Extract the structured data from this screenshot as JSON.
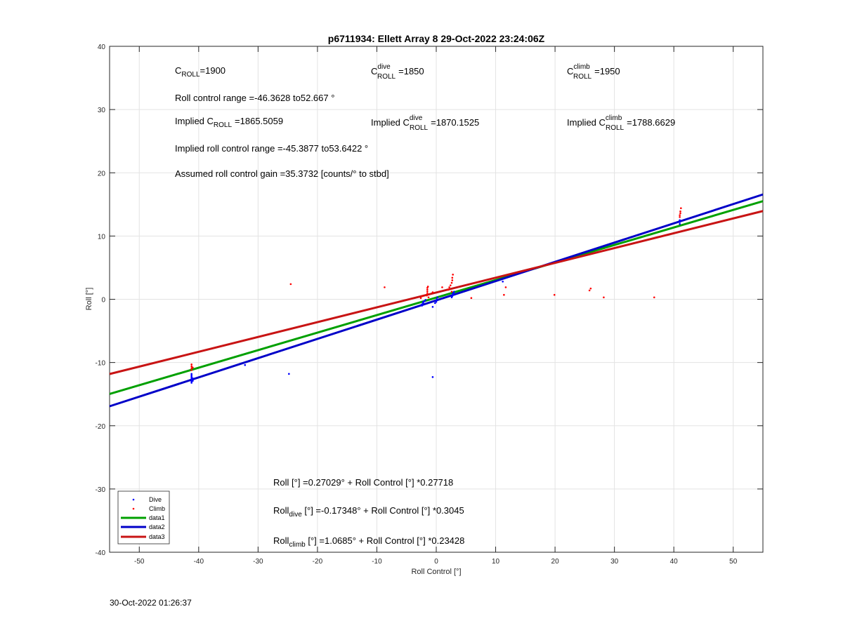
{
  "chart_data": {
    "type": "scatter",
    "title": "p6711934: Ellett Array 8 29-Oct-2022 23:24:06Z",
    "xlabel": "Roll Control [°]",
    "ylabel": "Roll [°]",
    "xlim": [
      -55,
      55
    ],
    "ylim": [
      -40,
      40
    ],
    "xticks": [
      -50,
      -40,
      -30,
      -20,
      -10,
      0,
      10,
      20,
      30,
      40,
      50
    ],
    "yticks": [
      -40,
      -30,
      -20,
      -10,
      0,
      10,
      20,
      30,
      40
    ],
    "grid": true,
    "legend_position": "bottom-left",
    "series": [
      {
        "name": "Dive",
        "kind": "points",
        "color": "#0000ff",
        "points": [
          [
            -41.2,
            -11.8
          ],
          [
            -41.2,
            -12.0
          ],
          [
            -41.2,
            -12.2
          ],
          [
            -41.2,
            -12.4
          ],
          [
            -41.2,
            -12.6
          ],
          [
            -41.2,
            -12.8
          ],
          [
            -41.2,
            -13.0
          ],
          [
            -41.2,
            -13.2
          ],
          [
            -41.0,
            -12.5
          ],
          [
            -41.0,
            -12.9
          ],
          [
            -32.2,
            -10.4
          ],
          [
            -24.8,
            -11.8
          ],
          [
            -0.6,
            -12.3
          ],
          [
            -2.4,
            -0.8
          ],
          [
            -2.4,
            -1.0
          ],
          [
            -2.2,
            -0.6
          ],
          [
            -2.2,
            -0.4
          ],
          [
            -2.0,
            -0.3
          ],
          [
            -1.8,
            -0.1
          ],
          [
            -0.6,
            -1.2
          ],
          [
            -0.2,
            -0.6
          ],
          [
            0.0,
            -0.4
          ],
          [
            0.0,
            -0.2
          ],
          [
            0.1,
            0.0
          ],
          [
            0.2,
            0.3
          ],
          [
            2.6,
            0.3
          ],
          [
            2.7,
            0.5
          ],
          [
            2.8,
            0.7
          ],
          [
            2.8,
            0.9
          ],
          [
            2.9,
            1.0
          ],
          [
            3.0,
            1.2
          ],
          [
            11.2,
            2.8
          ],
          [
            41.0,
            11.9
          ],
          [
            41.0,
            12.2
          ],
          [
            41.0,
            12.5
          ]
        ]
      },
      {
        "name": "Climb",
        "kind": "points",
        "color": "#ff0000",
        "points": [
          [
            -41.2,
            -10.3
          ],
          [
            -41.2,
            -10.6
          ],
          [
            -41.2,
            -10.9
          ],
          [
            -41.2,
            -11.2
          ],
          [
            -41.0,
            -10.8
          ],
          [
            -24.5,
            2.4
          ],
          [
            -8.7,
            1.9
          ],
          [
            -2.6,
            0.2
          ],
          [
            -2.3,
            0.5
          ],
          [
            -1.6,
            0.6
          ],
          [
            -1.5,
            0.9
          ],
          [
            -1.5,
            1.2
          ],
          [
            -1.5,
            1.5
          ],
          [
            -1.5,
            1.8
          ],
          [
            -1.4,
            2.0
          ],
          [
            -1.3,
            0.3
          ],
          [
            -0.6,
            1.1
          ],
          [
            1.0,
            1.9
          ],
          [
            2.0,
            1.5
          ],
          [
            2.2,
            1.9
          ],
          [
            2.4,
            2.2
          ],
          [
            2.6,
            2.6
          ],
          [
            2.7,
            3.0
          ],
          [
            2.7,
            3.4
          ],
          [
            2.8,
            3.9
          ],
          [
            2.6,
            1.2
          ],
          [
            5.9,
            0.2
          ],
          [
            11.4,
            0.7
          ],
          [
            11.7,
            1.9
          ],
          [
            19.9,
            0.7
          ],
          [
            25.8,
            1.4
          ],
          [
            26.0,
            1.7
          ],
          [
            28.2,
            0.3
          ],
          [
            36.7,
            0.3
          ],
          [
            41.0,
            13.0
          ],
          [
            41.0,
            13.3
          ],
          [
            41.1,
            13.6
          ],
          [
            41.1,
            13.9
          ],
          [
            41.2,
            14.4
          ]
        ]
      },
      {
        "name": "data1",
        "kind": "line",
        "color": "#00a000",
        "intercept": 0.27029,
        "slope": 0.27718
      },
      {
        "name": "data2",
        "kind": "line",
        "color": "#0000c8",
        "intercept": -0.17348,
        "slope": 0.3045
      },
      {
        "name": "data3",
        "kind": "line",
        "color": "#c81414",
        "intercept": 1.0685,
        "slope": 0.23428
      }
    ],
    "annotations": {
      "c_roll": {
        "base": "C",
        "sub": "ROLL",
        "sup": "",
        "value": "=1900"
      },
      "c_roll_dive": {
        "base": "C",
        "sub": "ROLL",
        "sup": "dive",
        "value": "=1850"
      },
      "c_roll_climb": {
        "base": "C",
        "sub": "ROLL",
        "sup": "climb",
        "value": "=1950"
      },
      "roll_control_range": "Roll control range =-46.3628 to52.667 °",
      "implied_c_roll": {
        "prefix": "Implied C",
        "sub": "ROLL",
        "sup": "",
        "value": "=1865.5059"
      },
      "implied_c_roll_dive": {
        "prefix": "Implied C",
        "sub": "ROLL",
        "sup": "dive",
        "value": "=1870.1525"
      },
      "implied_c_roll_climb": {
        "prefix": "Implied C",
        "sub": "ROLL",
        "sup": "climb",
        "value": "=1788.6629"
      },
      "implied_roll_range": "Implied roll control range =-45.3877 to53.6422 °",
      "assumed_gain": "Assumed roll control gain =35.3732 [counts/° to stbd]",
      "fit_all": "Roll [°] =0.27029° + Roll Control [°] *0.27718",
      "fit_dive": {
        "prefix": "Roll",
        "sub": "dive",
        "rest": " [°] =-0.17348° + Roll Control [°] *0.3045"
      },
      "fit_climb": {
        "prefix": "Roll",
        "sub": "climb",
        "rest": " [°] =1.0685° + Roll Control [°] *0.23428"
      }
    }
  },
  "footer": {
    "timestamp": "30-Oct-2022 01:26:37"
  }
}
